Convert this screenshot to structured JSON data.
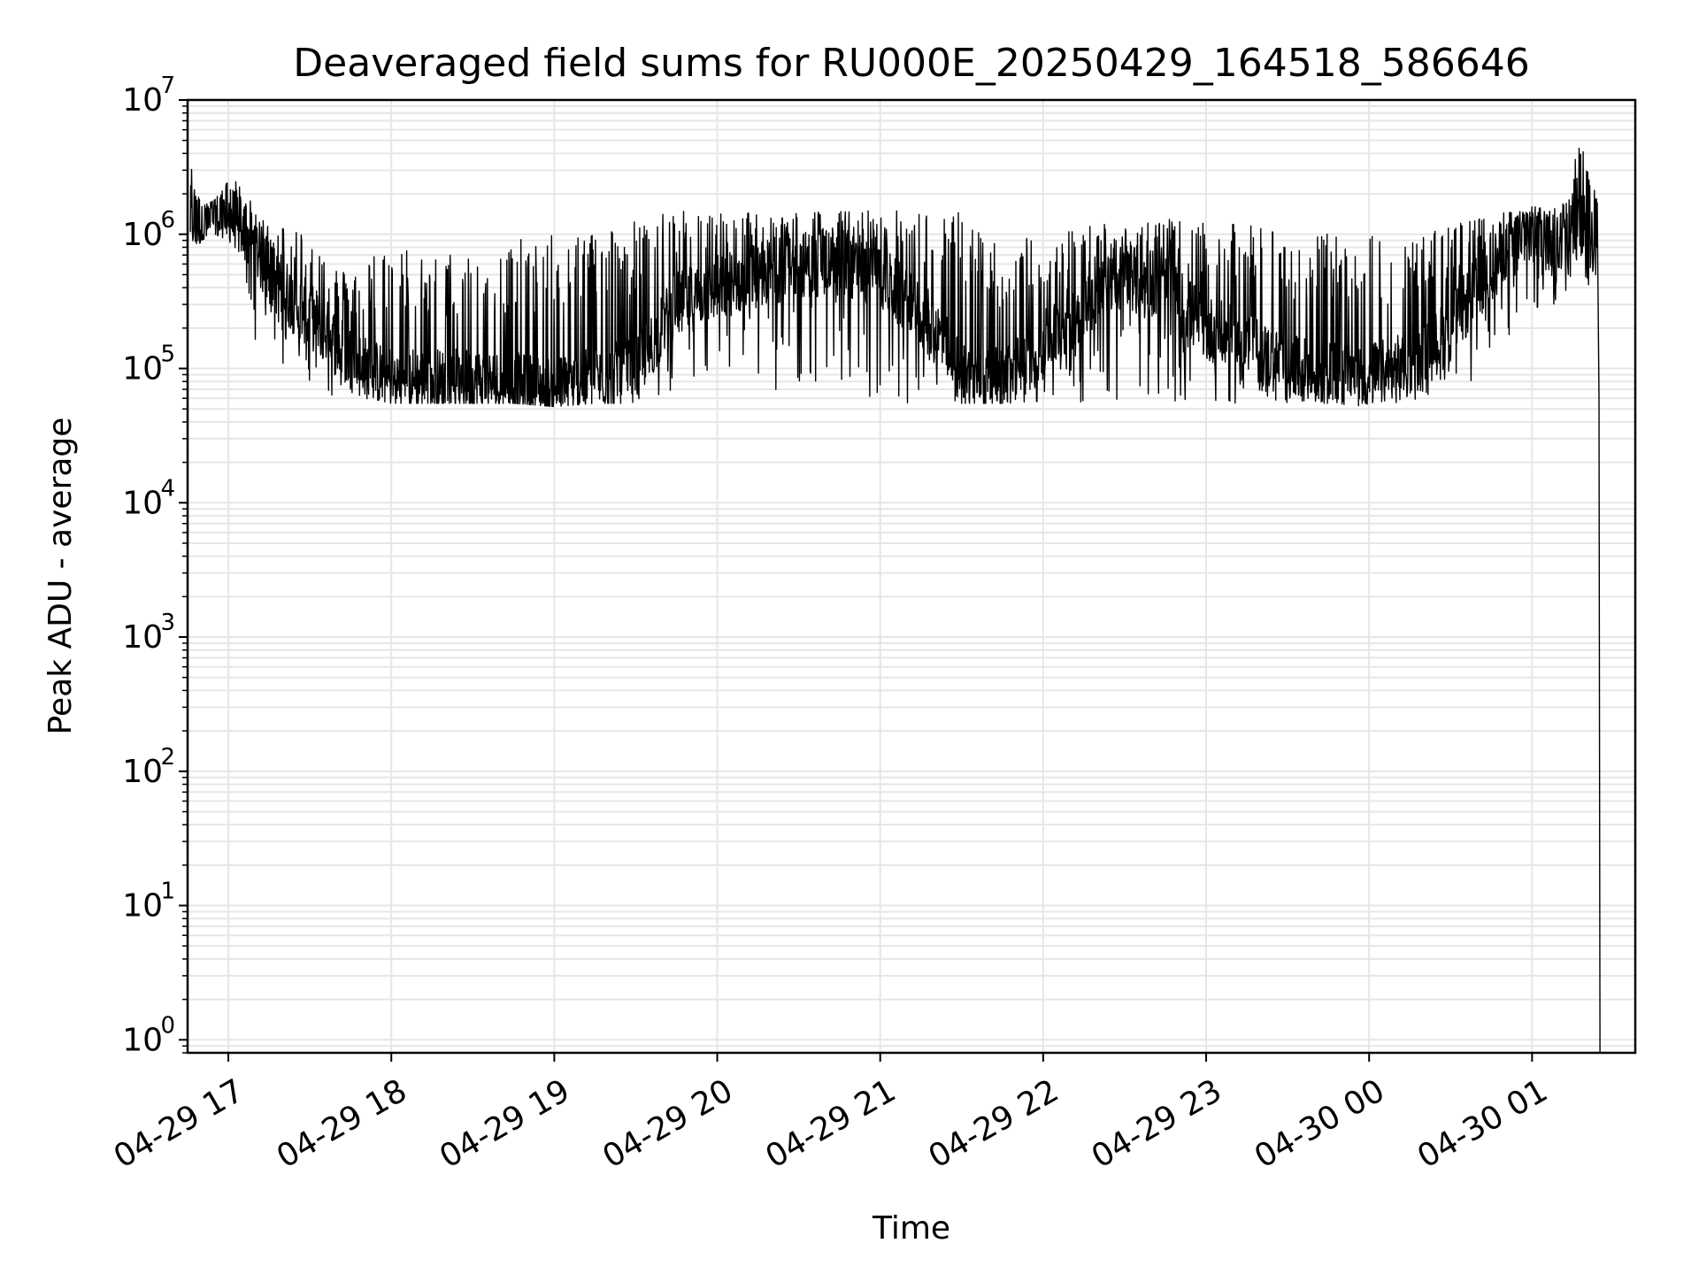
{
  "chart_data": {
    "type": "line",
    "title": "Deaveraged field sums for RU000E_20250429_164518_586646",
    "xlabel": "Time",
    "ylabel": "Peak ADU - average",
    "yscale": "log",
    "ylim": [
      0.8,
      10000000
    ],
    "xlim": [
      "2025-04-29 16:45",
      "2025-04-30 01:38"
    ],
    "x_ticks": [
      {
        "t": "2025-04-29 17:00",
        "label": "04-29 17"
      },
      {
        "t": "2025-04-29 18:00",
        "label": "04-29 18"
      },
      {
        "t": "2025-04-29 19:00",
        "label": "04-29 19"
      },
      {
        "t": "2025-04-29 20:00",
        "label": "04-29 20"
      },
      {
        "t": "2025-04-29 21:00",
        "label": "04-29 21"
      },
      {
        "t": "2025-04-29 22:00",
        "label": "04-29 22"
      },
      {
        "t": "2025-04-29 23:00",
        "label": "04-29 23"
      },
      {
        "t": "2025-04-30 00:00",
        "label": "04-30 00"
      },
      {
        "t": "2025-04-30 01:00",
        "label": "04-30 01"
      }
    ],
    "y_ticks": [
      {
        "value": 1,
        "base": "10",
        "exp": "0"
      },
      {
        "value": 10,
        "base": "10",
        "exp": "1"
      },
      {
        "value": 100,
        "base": "10",
        "exp": "2"
      },
      {
        "value": 1000,
        "base": "10",
        "exp": "3"
      },
      {
        "value": 10000,
        "base": "10",
        "exp": "4"
      },
      {
        "value": 100000,
        "base": "10",
        "exp": "5"
      },
      {
        "value": 1000000,
        "base": "10",
        "exp": "6"
      },
      {
        "value": 10000000,
        "base": "10",
        "exp": "7"
      }
    ],
    "grid": true,
    "line_color": "#000000",
    "grid_color": "#e6e6e6",
    "series": [
      {
        "x": [
          "2025-04-29 16:46",
          "2025-04-29 16:50",
          "2025-04-29 16:55",
          "2025-04-29 17:00",
          "2025-04-29 17:05",
          "2025-04-29 17:10",
          "2025-04-29 17:15",
          "2025-04-29 17:20",
          "2025-04-29 17:25",
          "2025-04-29 17:30",
          "2025-04-29 17:35",
          "2025-04-29 17:40",
          "2025-04-29 17:45",
          "2025-04-29 17:50",
          "2025-04-29 17:55",
          "2025-04-29 18:00",
          "2025-04-29 18:15",
          "2025-04-29 18:30",
          "2025-04-29 18:45",
          "2025-04-29 19:00",
          "2025-04-29 19:15",
          "2025-04-29 19:30",
          "2025-04-29 19:45",
          "2025-04-29 20:00",
          "2025-04-29 20:15",
          "2025-04-29 20:30",
          "2025-04-29 20:45",
          "2025-04-29 21:00",
          "2025-04-29 21:10",
          "2025-04-29 21:20",
          "2025-04-29 21:30",
          "2025-04-29 21:45",
          "2025-04-29 22:00",
          "2025-04-29 22:15",
          "2025-04-29 22:30",
          "2025-04-29 22:45",
          "2025-04-29 23:00",
          "2025-04-29 23:15",
          "2025-04-29 23:30",
          "2025-04-29 23:45",
          "2025-04-30 00:00",
          "2025-04-30 00:10",
          "2025-04-30 00:20",
          "2025-04-30 00:30",
          "2025-04-30 00:40",
          "2025-04-30 00:50",
          "2025-04-30 01:00",
          "2025-04-30 01:10",
          "2025-04-30 01:18",
          "2025-04-30 01:24",
          "2025-04-30 01:25"
        ],
        "values": [
          1300000,
          1200000,
          1300000,
          1400000,
          1100000,
          800000,
          500000,
          400000,
          300000,
          250000,
          200000,
          150000,
          120000,
          100000,
          90000,
          85000,
          80000,
          80000,
          75000,
          70000,
          80000,
          100000,
          300000,
          400000,
          500000,
          600000,
          600000,
          500000,
          300000,
          200000,
          90000,
          80000,
          150000,
          300000,
          500000,
          400000,
          200000,
          150000,
          100000,
          90000,
          90000,
          100000,
          120000,
          200000,
          400000,
          800000,
          1000000,
          900000,
          1200000,
          800000,
          0.8
        ],
        "upper": [
          3500000,
          1600000,
          1800000,
          2500000,
          2600000,
          1400000,
          1300000,
          1200000,
          1200000,
          1000000,
          800000,
          600000,
          500000,
          700000,
          800000,
          900000,
          700000,
          800000,
          900000,
          1000000,
          1200000,
          1300000,
          1500000,
          1500000,
          1500000,
          1500000,
          1500000,
          1550000,
          1500000,
          1500000,
          1500000,
          900000,
          1000000,
          1200000,
          1300000,
          1300000,
          1200000,
          1200000,
          1100000,
          1000000,
          1000000,
          900000,
          1000000,
          1200000,
          1300000,
          1500000,
          1600000,
          1700000,
          5000000,
          3000000,
          60000
        ],
        "lower": [
          600000,
          900000,
          1000000,
          900000,
          700000,
          160000,
          200000,
          100000,
          90000,
          70000,
          65000,
          60000,
          60000,
          60000,
          58000,
          55000,
          55000,
          55000,
          55000,
          52000,
          55000,
          55000,
          60000,
          60000,
          60000,
          60000,
          60000,
          55000,
          55000,
          55000,
          55000,
          55000,
          55000,
          55000,
          55000,
          55000,
          55000,
          55000,
          55000,
          55000,
          52000,
          55000,
          60000,
          65000,
          80000,
          150000,
          250000,
          300000,
          300000,
          400000,
          0.8
        ]
      }
    ]
  }
}
